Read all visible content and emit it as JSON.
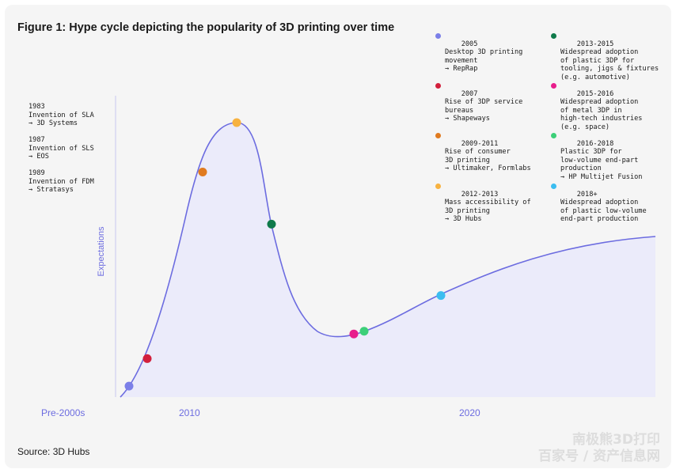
{
  "title": "Figure 1: Hype cycle depicting the popularity of 3D printing over time",
  "source": "Source: 3D Hubs",
  "history": [
    {
      "year": "1983",
      "text": "Invention of SLA",
      "detail": "→ 3D Systems"
    },
    {
      "year": "1987",
      "text": "Invention of SLS",
      "detail": "→ EOS"
    },
    {
      "year": "1989",
      "text": "Invention of FDM",
      "detail": "→ Stratasys"
    }
  ],
  "legend": [
    {
      "year": "2005",
      "text": "Desktop 3D printing\nmovement\n→ RepRap",
      "color": "#7b7fe8"
    },
    {
      "year": "2007",
      "text": "Rise of 3DP service\nbureaus\n→ Shapeways",
      "color": "#d21f3c"
    },
    {
      "year": "2009-2011",
      "text": "Rise of consumer\n3D printing\n→ Ultimaker, Formlabs",
      "color": "#e07a1f"
    },
    {
      "year": "2012-2013",
      "text": "Mass accessibility of\n3D printing\n→ 3D Hubs",
      "color": "#f7b240"
    },
    {
      "year": "2013-2015",
      "text": "Widespread adoption\nof plastic 3DP for\ntooling, jigs & fixtures\n(e.g. automotive)",
      "color": "#0f7a4a"
    },
    {
      "year": "2015-2016",
      "text": "Widespread adoption\nof metal 3DP in\nhigh-tech industries\n(e.g. space)",
      "color": "#e81e8c"
    },
    {
      "year": "2016-2018",
      "text": "Plastic 3DP for\nlow-volume end-part\nproduction\n→ HP Multijet Fusion",
      "color": "#3ccf78"
    },
    {
      "year": "2018+",
      "text": "Widespread adoption\nof plastic low-volume\nend-part production",
      "color": "#3bbdf0"
    }
  ],
  "chart_data": {
    "type": "area",
    "title": "Figure 1: Hype cycle depicting the popularity of 3D printing over time",
    "ylabel": "Expectations",
    "x_tick_labels": [
      "Pre-2000s",
      "2010",
      "2020"
    ],
    "line_color": "#6c6ce0",
    "fill_color": "#ebebfa",
    "milestones": [
      {
        "label": "2005",
        "expectation": 0.04,
        "color": "#7b7fe8"
      },
      {
        "label": "2007",
        "expectation": 0.14,
        "color": "#d21f3c"
      },
      {
        "label": "2009-2011",
        "expectation": 0.82,
        "color": "#e07a1f"
      },
      {
        "label": "2012-2013",
        "expectation": 1.0,
        "color": "#f7b240"
      },
      {
        "label": "2013-2015",
        "expectation": 0.63,
        "color": "#0f7a4a"
      },
      {
        "label": "2015-2016",
        "expectation": 0.23,
        "color": "#e81e8c"
      },
      {
        "label": "2016-2018",
        "expectation": 0.24,
        "color": "#3ccf78"
      },
      {
        "label": "2018+",
        "expectation": 0.37,
        "color": "#3bbdf0"
      }
    ]
  },
  "watermark": {
    "line1": "南极熊3D打印",
    "line2": "百家号 / 资产信息网"
  }
}
